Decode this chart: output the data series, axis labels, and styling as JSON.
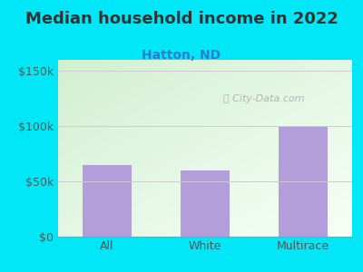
{
  "title": "Median household income in 2022",
  "subtitle": "Hatton, ND",
  "categories": [
    "All",
    "White",
    "Multirace"
  ],
  "values": [
    65000,
    60000,
    100000
  ],
  "bar_color": "#b39ddb",
  "background_outer": "#00e8f8",
  "title_color": "#333333",
  "subtitle_color": "#2e7bcf",
  "tick_label_color": "#555555",
  "watermark": "City-Data.com",
  "ylim": [
    0,
    160000
  ],
  "yticks": [
    0,
    50000,
    100000,
    150000
  ],
  "ytick_labels": [
    "$0",
    "$50k",
    "$100k",
    "$150k"
  ],
  "title_fontsize": 13,
  "subtitle_fontsize": 10,
  "tick_fontsize": 9,
  "grad_topleft": [
    0.82,
    0.94,
    0.82
  ],
  "grad_bottomright": [
    0.97,
    1.0,
    0.97
  ]
}
